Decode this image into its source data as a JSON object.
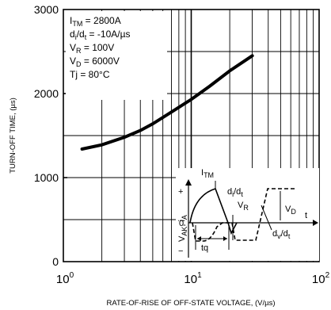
{
  "chart_data": {
    "type": "line",
    "xlabel": "RATE-OF-RISE OF OFF-STATE VOLTAGE, (V/µs)",
    "ylabel": "TURN-OFF TIME, (µs)",
    "x_scale": "log",
    "xlim": [
      1,
      100
    ],
    "ylim": [
      0,
      3000
    ],
    "x_ticks": [
      {
        "value": 1,
        "base": "10",
        "exp": "0"
      },
      {
        "value": 10,
        "base": "10",
        "exp": "1"
      },
      {
        "value": 100,
        "base": "10",
        "exp": "2"
      }
    ],
    "y_ticks": [
      {
        "value": 0,
        "label": "0"
      },
      {
        "value": 1000,
        "label": "1000"
      },
      {
        "value": 2000,
        "label": "2000"
      },
      {
        "value": 3000,
        "label": "3000"
      }
    ],
    "grid": true,
    "series": [
      {
        "x": [
          1.4,
          2,
          3,
          4,
          5,
          7,
          10,
          14,
          20,
          30
        ],
        "y": [
          1340,
          1390,
          1480,
          1560,
          1640,
          1780,
          1930,
          2090,
          2270,
          2450
        ]
      }
    ],
    "conditions": [
      {
        "main": "I",
        "sub": "TM",
        "rest": " = 2800A"
      },
      {
        "main": "d",
        "sub": "i",
        "mid": "/d",
        "sub2": "t",
        "rest": " = -10A/µs"
      },
      {
        "main": "V",
        "sub": "R",
        "rest": " = 100V"
      },
      {
        "main": "V",
        "sub": "D",
        "rest": " = 6000V"
      },
      {
        "main": "Tj",
        "sub": "",
        "rest": " = 80°C"
      }
    ],
    "inset": {
      "itm": {
        "main": "I",
        "sub": "TM"
      },
      "didt": {
        "main": "d",
        "sub": "i",
        "mid": "/d",
        "sub2": "t"
      },
      "vr": {
        "main": "V",
        "sub": "R"
      },
      "vd": {
        "main": "V",
        "sub": "D"
      },
      "dvdt": {
        "main": "d",
        "sub": "v",
        "mid": "/d",
        "sub2": "t"
      },
      "vak": {
        "main": "V",
        "sub": "AK",
        "mid": ", i",
        "sub2": "A"
      },
      "tq": "tq",
      "t": "t",
      "zero": "0",
      "plus": "+",
      "minus": "−"
    }
  }
}
